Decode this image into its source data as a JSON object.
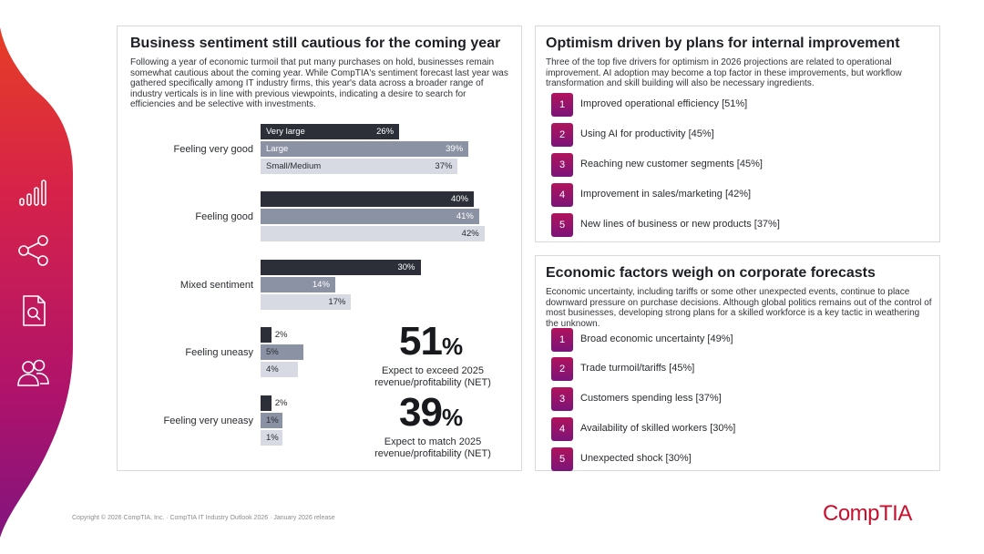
{
  "left_panel": {
    "title": "Business sentiment still cautious for the coming year",
    "body": "Following a year of economic turmoil that put many purchases on hold, businesses remain somewhat cautious about the coming year. While CompTIA's sentiment forecast last year was gathered specifically among IT industry firms, this year's data across a broader range of industry verticals is in line with previous viewpoints, indicating a desire to search for efficiencies and be selective with investments."
  },
  "chart_data": {
    "type": "bar",
    "orientation": "horizontal",
    "categories": [
      "Feeling very good",
      "Feeling good",
      "Mixed sentiment",
      "Feeling uneasy",
      "Feeling very uneasy"
    ],
    "series": [
      {
        "name": "Very large",
        "values": [
          26,
          40,
          30,
          2,
          2
        ],
        "labels": [
          "26%",
          "40%",
          "30%",
          "2%",
          "2%"
        ]
      },
      {
        "name": "Large",
        "values": [
          39,
          41,
          14,
          5,
          1
        ],
        "labels": [
          "39%",
          "41%",
          "14%",
          "5%",
          "1%"
        ]
      },
      {
        "name": "Small/Medium",
        "values": [
          37,
          42,
          17,
          4,
          1
        ],
        "labels": [
          "37%",
          "42%",
          "17%",
          "4%",
          "1%"
        ]
      }
    ],
    "colors": [
      "#2c2f38",
      "#8b92a4",
      "#d7dae3"
    ],
    "xlim": [
      0,
      45
    ]
  },
  "stats": [
    {
      "number": "51",
      "unit": "%",
      "caption": "Expect to exceed 2025 revenue/profitability (NET)"
    },
    {
      "number": "39",
      "unit": "%",
      "caption": "Expect to match 2025 revenue/profitability (NET)"
    }
  ],
  "top_right": {
    "title": "Optimism driven by plans for internal improvement",
    "body": "Three of the top five drivers for optimism in 2026 projections are related to operational improvement. AI adoption may become a top factor in these improvements, but workflow transformation and skill building will also be necessary ingredients.",
    "items": [
      {
        "rank": "1",
        "text": "Improved operational efficiency [51%]"
      },
      {
        "rank": "2",
        "text": "Using AI for productivity [45%]"
      },
      {
        "rank": "3",
        "text": "Reaching new customer segments [45%]"
      },
      {
        "rank": "4",
        "text": "Improvement in sales/marketing [42%]"
      },
      {
        "rank": "5",
        "text": "New lines of business or new products [37%]"
      }
    ]
  },
  "bottom_right": {
    "title": "Economic factors weigh on corporate forecasts",
    "body": "Economic uncertainty, including tariffs or some other unexpected events, continue to place downward pressure on purchase decisions. Although global politics remains out of the control of most businesses, developing strong plans for a skilled workforce is a key tactic in weathering the unknown.",
    "items": [
      {
        "rank": "1",
        "text": "Broad economic uncertainty [49%]"
      },
      {
        "rank": "2",
        "text": "Trade turmoil/tariffs [45%]"
      },
      {
        "rank": "3",
        "text": "Customers spending less [37%]"
      },
      {
        "rank": "4",
        "text": "Availability of skilled workers [30%]"
      },
      {
        "rank": "5",
        "text": "Unexpected shock [30%]"
      }
    ]
  },
  "footer": "Copyright © 2026 CompTIA, Inc. · CompTIA IT Industry Outlook 2026 · January 2026 release",
  "brand": {
    "logo_text": "CompTIA",
    "accent": "#c8102e"
  },
  "sidebar_icons": [
    "bar-chart-icon",
    "share-icon",
    "document-search-icon",
    "users-icon"
  ]
}
